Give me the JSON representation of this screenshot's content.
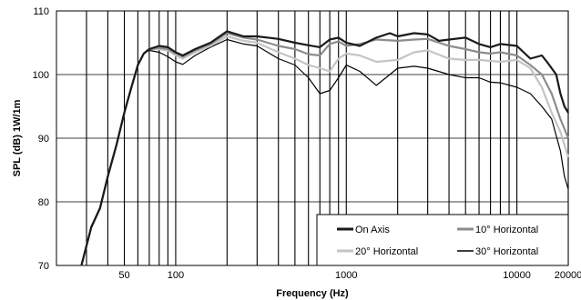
{
  "chart_data": {
    "type": "line",
    "xlabel": "Frequency (Hz)",
    "ylabel": "SPL (dB) 1W/1m",
    "x_scale": "log",
    "xlim": [
      20,
      20000
    ],
    "ylim": [
      70,
      110
    ],
    "x_tick_labels": [
      {
        "value": 50,
        "label": "50"
      },
      {
        "value": 100,
        "label": "100"
      },
      {
        "value": 1000,
        "label": "1000"
      },
      {
        "value": 10000,
        "label": "10000"
      },
      {
        "value": 20000,
        "label": "20000"
      }
    ],
    "y_ticks": [
      70,
      80,
      90,
      100,
      110
    ],
    "grid": true,
    "legend_position": "bottom-right",
    "series": [
      {
        "name": "On Axis",
        "color": "#1a1a1a",
        "points": [
          [
            28,
            70
          ],
          [
            32,
            76
          ],
          [
            36,
            79
          ],
          [
            40,
            84
          ],
          [
            45,
            89
          ],
          [
            50,
            94
          ],
          [
            55,
            98
          ],
          [
            60,
            101.5
          ],
          [
            65,
            103.3
          ],
          [
            70,
            104
          ],
          [
            80,
            104.5
          ],
          [
            90,
            104.3
          ],
          [
            100,
            103.5
          ],
          [
            110,
            103
          ],
          [
            130,
            104
          ],
          [
            160,
            105
          ],
          [
            200,
            106.8
          ],
          [
            250,
            106
          ],
          [
            300,
            106
          ],
          [
            400,
            105.6
          ],
          [
            500,
            105
          ],
          [
            600,
            104.6
          ],
          [
            700,
            104.3
          ],
          [
            800,
            105.5
          ],
          [
            900,
            105.8
          ],
          [
            1000,
            105
          ],
          [
            1200,
            104.5
          ],
          [
            1500,
            105.8
          ],
          [
            1800,
            106.5
          ],
          [
            2000,
            106
          ],
          [
            2500,
            106.5
          ],
          [
            3000,
            106.3
          ],
          [
            3500,
            105.3
          ],
          [
            4000,
            105.5
          ],
          [
            5000,
            105.8
          ],
          [
            6000,
            104.8
          ],
          [
            7000,
            104.3
          ],
          [
            8000,
            104.8
          ],
          [
            10000,
            104.5
          ],
          [
            12000,
            102.5
          ],
          [
            14000,
            103
          ],
          [
            15000,
            102
          ],
          [
            17000,
            100
          ],
          [
            18000,
            97
          ],
          [
            19000,
            95
          ],
          [
            20000,
            94
          ]
        ]
      },
      {
        "name": "10° Horizontal",
        "color": "#8c8c8c",
        "points": [
          [
            28,
            70
          ],
          [
            32,
            76
          ],
          [
            36,
            79
          ],
          [
            40,
            84
          ],
          [
            45,
            89
          ],
          [
            50,
            94
          ],
          [
            55,
            98
          ],
          [
            60,
            101.5
          ],
          [
            65,
            103.3
          ],
          [
            70,
            104
          ],
          [
            80,
            104.2
          ],
          [
            90,
            104
          ],
          [
            100,
            103.3
          ],
          [
            110,
            102.8
          ],
          [
            130,
            103.8
          ],
          [
            160,
            104.8
          ],
          [
            200,
            106.5
          ],
          [
            250,
            105.8
          ],
          [
            300,
            105.5
          ],
          [
            400,
            104.5
          ],
          [
            500,
            104
          ],
          [
            600,
            103.2
          ],
          [
            700,
            103
          ],
          [
            800,
            104.8
          ],
          [
            900,
            105.2
          ],
          [
            1000,
            104.5
          ],
          [
            1200,
            104.8
          ],
          [
            1500,
            105.5
          ],
          [
            2000,
            105.3
          ],
          [
            2500,
            105.5
          ],
          [
            3000,
            105.6
          ],
          [
            4000,
            104.5
          ],
          [
            5000,
            104
          ],
          [
            6000,
            103.5
          ],
          [
            7000,
            103.3
          ],
          [
            8000,
            103.5
          ],
          [
            10000,
            103
          ],
          [
            12000,
            101.5
          ],
          [
            14000,
            100
          ],
          [
            16000,
            97
          ],
          [
            18000,
            93
          ],
          [
            20000,
            90
          ]
        ]
      },
      {
        "name": "20° Horizontal",
        "color": "#c4c4c4",
        "points": [
          [
            28,
            70
          ],
          [
            32,
            76
          ],
          [
            36,
            79
          ],
          [
            40,
            84
          ],
          [
            45,
            89
          ],
          [
            50,
            94
          ],
          [
            55,
            98
          ],
          [
            60,
            101.5
          ],
          [
            65,
            103.3
          ],
          [
            70,
            104
          ],
          [
            80,
            104
          ],
          [
            90,
            103.8
          ],
          [
            100,
            103
          ],
          [
            110,
            102.5
          ],
          [
            130,
            103.5
          ],
          [
            160,
            104.5
          ],
          [
            200,
            106
          ],
          [
            250,
            105.3
          ],
          [
            300,
            105
          ],
          [
            400,
            103.5
          ],
          [
            500,
            102.5
          ],
          [
            600,
            101.5
          ],
          [
            700,
            101
          ],
          [
            800,
            100.5
          ],
          [
            900,
            102.5
          ],
          [
            1000,
            103.3
          ],
          [
            1200,
            103
          ],
          [
            1500,
            102
          ],
          [
            2000,
            102.3
          ],
          [
            2500,
            103.5
          ],
          [
            3000,
            103.8
          ],
          [
            4000,
            102.5
          ],
          [
            5000,
            102.3
          ],
          [
            6000,
            102.3
          ],
          [
            8000,
            102
          ],
          [
            10000,
            102.3
          ],
          [
            12000,
            101
          ],
          [
            14000,
            98
          ],
          [
            16000,
            94
          ],
          [
            18000,
            91
          ],
          [
            20000,
            87
          ]
        ]
      },
      {
        "name": "30° Horizontal",
        "color": "#000000",
        "points": [
          [
            28,
            70
          ],
          [
            32,
            76
          ],
          [
            36,
            79
          ],
          [
            40,
            84
          ],
          [
            45,
            89
          ],
          [
            50,
            94
          ],
          [
            55,
            98
          ],
          [
            60,
            101.5
          ],
          [
            65,
            103.3
          ],
          [
            70,
            103.8
          ],
          [
            80,
            103.5
          ],
          [
            90,
            102.8
          ],
          [
            100,
            102
          ],
          [
            110,
            101.6
          ],
          [
            130,
            103
          ],
          [
            160,
            104.3
          ],
          [
            200,
            105.5
          ],
          [
            250,
            104.8
          ],
          [
            300,
            104.5
          ],
          [
            400,
            102.5
          ],
          [
            500,
            101.5
          ],
          [
            600,
            99.5
          ],
          [
            700,
            97
          ],
          [
            800,
            97.5
          ],
          [
            900,
            99.5
          ],
          [
            1000,
            101.5
          ],
          [
            1200,
            100.5
          ],
          [
            1500,
            98.3
          ],
          [
            1800,
            100
          ],
          [
            2000,
            101
          ],
          [
            2500,
            101.3
          ],
          [
            3000,
            101
          ],
          [
            4000,
            100
          ],
          [
            5000,
            99.5
          ],
          [
            6000,
            99.5
          ],
          [
            7000,
            98.8
          ],
          [
            8000,
            98.7
          ],
          [
            10000,
            98
          ],
          [
            12000,
            97
          ],
          [
            14000,
            95
          ],
          [
            16000,
            93
          ],
          [
            18000,
            88
          ],
          [
            19000,
            84
          ],
          [
            20000,
            82
          ]
        ]
      }
    ]
  }
}
